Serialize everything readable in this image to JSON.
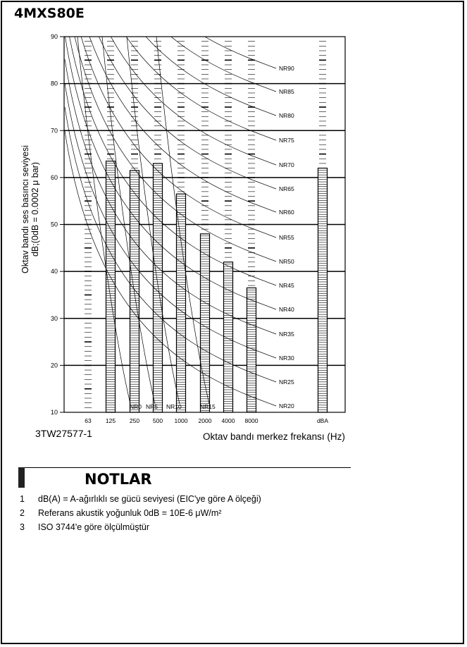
{
  "page": {
    "model_title": "4MXS80E",
    "reference_code": "3TW27577-1"
  },
  "chart_data": {
    "type": "bar",
    "title": "4MXS80E",
    "xlabel": "Oktav bandı merkez frekansı (Hz)",
    "ylabel_line1": "Oktav bandı ses basıncı seviyesi",
    "ylabel_line2": "dB;(0dB = 0.0002 μ bar)",
    "ylim": [
      10,
      90
    ],
    "yticks": [
      10,
      20,
      30,
      40,
      50,
      60,
      70,
      80,
      90
    ],
    "categories": [
      "63",
      "125",
      "250",
      "500",
      "1000",
      "2000",
      "4000",
      "8000",
      "dBA"
    ],
    "series": [
      {
        "values": [
          null,
          63.5,
          61.5,
          63,
          56.5,
          48,
          42,
          36.5,
          62
        ]
      }
    ],
    "nr_curve_labels": [
      "NR90",
      "NR85",
      "NR80",
      "NR75",
      "NR70",
      "NR65",
      "NR60",
      "NR55",
      "NR50",
      "NR45",
      "NR40",
      "NR35",
      "NR30",
      "NR25",
      "NR20"
    ],
    "nr_bottom_labels": [
      "NR0",
      "NR5",
      "NR10",
      "NR15"
    ],
    "grid": true
  },
  "notes": {
    "title": "NOTLAR",
    "items": [
      {
        "num": "1",
        "text": "dB(A) = A-ağırlıklı se gücü seviyesi (EIC'ye göre A ölçeği)"
      },
      {
        "num": "2",
        "text": "Referans akustik yoğunluk 0dB = 10E-6 μW/m²"
      },
      {
        "num": "3",
        "text": "ISO 3744'e göre ölçülmüştür"
      }
    ]
  }
}
